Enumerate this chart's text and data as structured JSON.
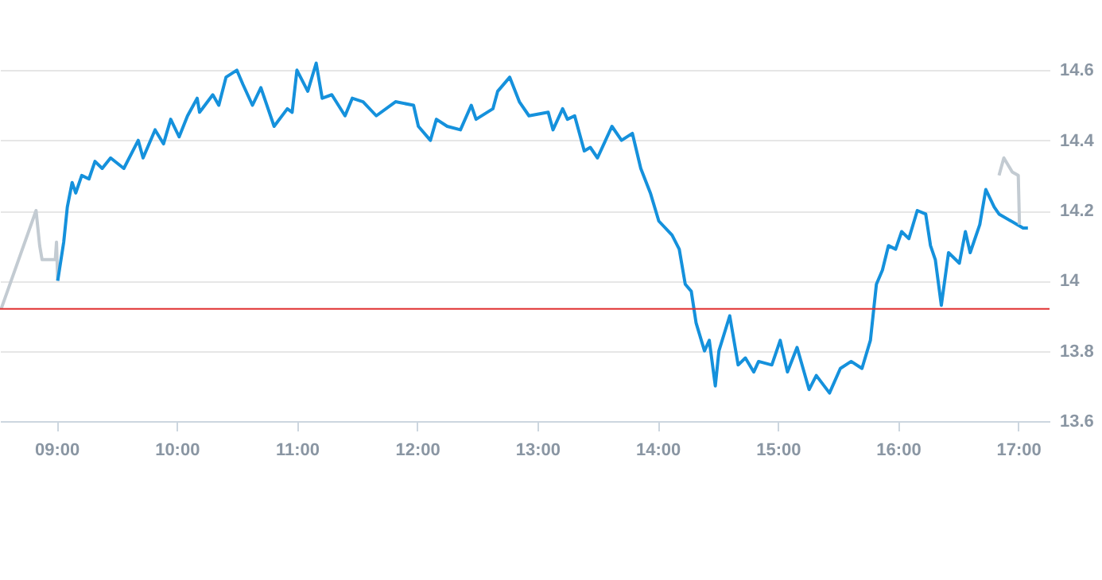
{
  "chart_data": {
    "type": "line",
    "xlim": [
      8.53,
      17.26
    ],
    "ylim": [
      13.6,
      14.8
    ],
    "xticks": [
      {
        "value": 9,
        "label": "09:00"
      },
      {
        "value": 10,
        "label": "10:00"
      },
      {
        "value": 11,
        "label": "11:00"
      },
      {
        "value": 12,
        "label": "12:00"
      },
      {
        "value": 13,
        "label": "13:00"
      },
      {
        "value": 14,
        "label": "14:00"
      },
      {
        "value": 15,
        "label": "15:00"
      },
      {
        "value": 16,
        "label": "16:00"
      },
      {
        "value": 17,
        "label": "17:00"
      }
    ],
    "yticks": [
      {
        "value": 13.6,
        "label": "13.6"
      },
      {
        "value": 13.8,
        "label": "13.8"
      },
      {
        "value": 14,
        "label": "14"
      },
      {
        "value": 14.2,
        "label": "14.2"
      },
      {
        "value": 14.4,
        "label": "14.4"
      },
      {
        "value": 14.6,
        "label": "14.6"
      }
    ],
    "grid": "y",
    "marker": "none",
    "line_style": "solid",
    "ref_lines": [
      {
        "axis": "y",
        "value": 13.92,
        "color": "#e03030"
      }
    ],
    "series": [
      {
        "color": "#c3cbd2",
        "x": [
          8.54,
          8.83,
          8.86,
          8.88,
          8.99,
          9.0,
          9.01
        ],
        "values": [
          13.92,
          14.2,
          14.1,
          14.06,
          14.06,
          14.11,
          14.0
        ]
      },
      {
        "color": "#1591dc",
        "x": [
          9.01,
          9.06,
          9.09,
          9.13,
          9.16,
          9.21,
          9.27,
          9.32,
          9.38,
          9.45,
          9.56,
          9.68,
          9.72,
          9.82,
          9.89,
          9.95,
          10.02,
          10.09,
          10.17,
          10.19,
          10.3,
          10.35,
          10.41,
          10.5,
          10.55,
          10.63,
          10.7,
          10.81,
          10.92,
          10.96,
          11.0,
          11.09,
          11.16,
          11.21,
          11.29,
          11.4,
          11.46,
          11.55,
          11.66,
          11.82,
          11.97,
          12.01,
          12.11,
          12.16,
          12.25,
          12.36,
          12.45,
          12.49,
          12.63,
          12.67,
          12.77,
          12.85,
          12.93,
          13.09,
          13.13,
          13.21,
          13.25,
          13.31,
          13.39,
          13.44,
          13.5,
          13.62,
          13.7,
          13.79,
          13.86,
          13.94,
          14.01,
          14.12,
          14.18,
          14.23,
          14.28,
          14.32,
          14.39,
          14.43,
          14.48,
          14.51,
          14.6,
          14.67,
          14.73,
          14.8,
          14.84,
          14.95,
          15.02,
          15.08,
          15.16,
          15.26,
          15.32,
          15.43,
          15.52,
          15.61,
          15.7,
          15.77,
          15.82,
          15.87,
          15.92,
          15.98,
          16.03,
          16.09,
          16.16,
          16.23,
          16.27,
          16.31,
          16.36,
          16.42,
          16.51,
          16.56,
          16.6,
          16.68,
          16.73,
          16.8,
          16.84,
          17.04,
          17.08
        ],
        "values": [
          14.0,
          14.11,
          14.21,
          14.28,
          14.25,
          14.3,
          14.29,
          14.34,
          14.32,
          14.35,
          14.32,
          14.4,
          14.35,
          14.43,
          14.39,
          14.46,
          14.41,
          14.47,
          14.52,
          14.48,
          14.53,
          14.5,
          14.58,
          14.6,
          14.56,
          14.5,
          14.55,
          14.44,
          14.49,
          14.48,
          14.6,
          14.54,
          14.62,
          14.52,
          14.53,
          14.47,
          14.52,
          14.51,
          14.47,
          14.51,
          14.5,
          14.44,
          14.4,
          14.46,
          14.44,
          14.43,
          14.5,
          14.46,
          14.49,
          14.54,
          14.58,
          14.51,
          14.47,
          14.48,
          14.43,
          14.49,
          14.46,
          14.47,
          14.37,
          14.38,
          14.35,
          14.44,
          14.4,
          14.42,
          14.32,
          14.25,
          14.17,
          14.13,
          14.09,
          13.99,
          13.97,
          13.88,
          13.8,
          13.83,
          13.7,
          13.8,
          13.9,
          13.76,
          13.78,
          13.74,
          13.77,
          13.76,
          13.83,
          13.74,
          13.81,
          13.69,
          13.73,
          13.68,
          13.75,
          13.77,
          13.75,
          13.83,
          13.99,
          14.03,
          14.1,
          14.09,
          14.14,
          14.12,
          14.2,
          14.19,
          14.1,
          14.06,
          13.93,
          14.08,
          14.05,
          14.14,
          14.08,
          14.16,
          14.26,
          14.21,
          14.19,
          14.15,
          14.15
        ]
      },
      {
        "color": "#c3cbd2",
        "x": [
          16.84,
          16.88,
          16.95,
          17.0,
          17.01
        ],
        "values": [
          14.3,
          14.35,
          14.31,
          14.3,
          14.16
        ]
      }
    ]
  }
}
